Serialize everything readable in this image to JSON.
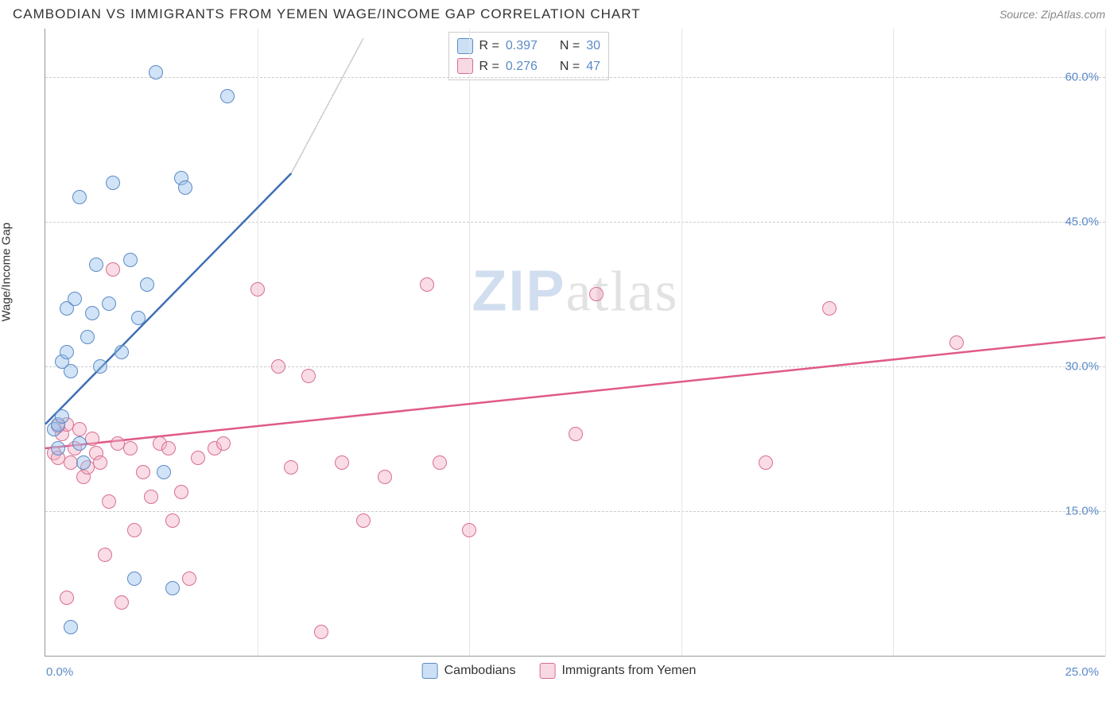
{
  "header": {
    "title": "CAMBODIAN VS IMMIGRANTS FROM YEMEN WAGE/INCOME GAP CORRELATION CHART",
    "source_label": "Source: ",
    "source_value": "ZipAtlas.com"
  },
  "watermark": {
    "part1": "ZIP",
    "part2": "atlas"
  },
  "chart": {
    "type": "scatter",
    "y_axis_label": "Wage/Income Gap",
    "background_color": "#ffffff",
    "grid_color": "#cccccc",
    "axis_color": "#999999",
    "marker_radius": 9,
    "xlim": [
      0,
      25
    ],
    "ylim": [
      0,
      65
    ],
    "x_origin_label": "0.0%",
    "x_end_label": "25.0%",
    "x_gridlines_at": [
      5,
      10,
      15,
      20,
      25
    ],
    "y_ticks": [
      {
        "value": 60,
        "label": "60.0%"
      },
      {
        "value": 45,
        "label": "45.0%"
      },
      {
        "value": 30,
        "label": "30.0%"
      },
      {
        "value": 15,
        "label": "15.0%"
      }
    ],
    "series": [
      {
        "id": "s1",
        "name": "Cambodians",
        "fill_color": "rgba(154,194,236,0.45)",
        "stroke_color": "#5b8ac7",
        "trend_color": "#3e6fb5",
        "legend_R_label": "R = ",
        "legend_R_value": "0.397",
        "legend_N_label": "N = ",
        "legend_N_value": "30",
        "points": [
          [
            0.2,
            23.5
          ],
          [
            0.3,
            24.0
          ],
          [
            0.3,
            21.5
          ],
          [
            0.4,
            30.5
          ],
          [
            0.5,
            36.0
          ],
          [
            0.5,
            31.5
          ],
          [
            0.6,
            29.5
          ],
          [
            0.7,
            37.0
          ],
          [
            0.8,
            47.5
          ],
          [
            0.8,
            22.0
          ],
          [
            0.9,
            20.0
          ],
          [
            1.0,
            33.0
          ],
          [
            1.1,
            35.5
          ],
          [
            1.2,
            40.5
          ],
          [
            1.3,
            30.0
          ],
          [
            1.5,
            36.5
          ],
          [
            1.6,
            49.0
          ],
          [
            1.8,
            31.5
          ],
          [
            2.0,
            41.0
          ],
          [
            2.2,
            35.0
          ],
          [
            2.4,
            38.5
          ],
          [
            2.6,
            60.5
          ],
          [
            2.8,
            19.0
          ],
          [
            3.0,
            7.0
          ],
          [
            3.2,
            49.5
          ],
          [
            3.3,
            48.5
          ],
          [
            4.3,
            58.0
          ],
          [
            0.6,
            3.0
          ],
          [
            2.1,
            8.0
          ],
          [
            0.4,
            24.8
          ]
        ],
        "trend": {
          "x1": 0,
          "y1": 24,
          "x2": 5.8,
          "y2": 50,
          "dash_x2": 7.5,
          "dash_y2": 64
        }
      },
      {
        "id": "s2",
        "name": "Immigrants from Yemen",
        "fill_color": "rgba(242,178,197,0.45)",
        "stroke_color": "#d96e8f",
        "trend_color": "#e05a88",
        "legend_R_label": "R = ",
        "legend_R_value": "0.276",
        "legend_N_label": "N = ",
        "legend_N_value": "47",
        "points": [
          [
            0.2,
            21.0
          ],
          [
            0.3,
            20.5
          ],
          [
            0.4,
            23.0
          ],
          [
            0.5,
            24.0
          ],
          [
            0.6,
            20.0
          ],
          [
            0.7,
            21.5
          ],
          [
            0.8,
            23.5
          ],
          [
            0.9,
            18.5
          ],
          [
            1.0,
            19.5
          ],
          [
            1.1,
            22.5
          ],
          [
            1.2,
            21.0
          ],
          [
            1.3,
            20.0
          ],
          [
            1.4,
            10.5
          ],
          [
            1.5,
            16.0
          ],
          [
            1.6,
            40.0
          ],
          [
            1.7,
            22.0
          ],
          [
            1.8,
            5.5
          ],
          [
            2.0,
            21.5
          ],
          [
            2.1,
            13.0
          ],
          [
            2.3,
            19.0
          ],
          [
            2.5,
            16.5
          ],
          [
            2.7,
            22.0
          ],
          [
            2.9,
            21.5
          ],
          [
            3.0,
            14.0
          ],
          [
            3.2,
            17.0
          ],
          [
            3.4,
            8.0
          ],
          [
            3.6,
            20.5
          ],
          [
            4.0,
            21.5
          ],
          [
            4.2,
            22.0
          ],
          [
            5.0,
            38.0
          ],
          [
            5.5,
            30.0
          ],
          [
            5.8,
            19.5
          ],
          [
            6.2,
            29.0
          ],
          [
            6.5,
            2.5
          ],
          [
            7.0,
            20.0
          ],
          [
            7.5,
            14.0
          ],
          [
            8.0,
            18.5
          ],
          [
            9.0,
            38.5
          ],
          [
            9.3,
            20.0
          ],
          [
            10.0,
            13.0
          ],
          [
            12.5,
            23.0
          ],
          [
            13.0,
            37.5
          ],
          [
            17.0,
            20.0
          ],
          [
            18.5,
            36.0
          ],
          [
            21.5,
            32.5
          ],
          [
            0.3,
            23.8
          ],
          [
            0.5,
            6.0
          ]
        ],
        "trend": {
          "x1": 0,
          "y1": 21.5,
          "x2": 25,
          "y2": 33
        }
      }
    ],
    "bottom_legend": [
      {
        "series": "s1",
        "label": "Cambodians"
      },
      {
        "series": "s2",
        "label": "Immigrants from Yemen"
      }
    ]
  }
}
